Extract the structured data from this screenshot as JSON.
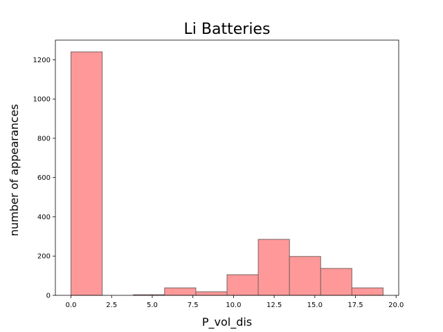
{
  "chart_data": {
    "type": "bar",
    "title": "Li Batteries",
    "xlabel": "P_vol_dis",
    "ylabel": "number of appearances",
    "xlim": [
      -0.96,
      20.16
    ],
    "ylim": [
      0,
      1300
    ],
    "x_ticks": [
      0.0,
      2.5,
      5.0,
      7.5,
      10.0,
      12.5,
      15.0,
      17.5,
      20.0
    ],
    "x_tick_labels": [
      "0.0",
      "2.5",
      "5.0",
      "7.5",
      "10.0",
      "12.5",
      "15.0",
      "17.5",
      "20.0"
    ],
    "y_ticks": [
      0,
      200,
      400,
      600,
      800,
      1000,
      1200
    ],
    "y_tick_labels": [
      "0",
      "200",
      "400",
      "600",
      "800",
      "1000",
      "1200"
    ],
    "bin_edges": [
      0.0,
      1.92,
      3.84,
      5.76,
      7.68,
      9.6,
      11.52,
      13.44,
      15.36,
      17.28,
      19.2
    ],
    "values": [
      1240,
      0,
      3,
      38,
      18,
      105,
      285,
      198,
      137,
      38
    ],
    "grid": false,
    "colors": {
      "bar_fill": "#ff9999",
      "bar_edge": "#7a6060",
      "axes": "#000000"
    }
  }
}
